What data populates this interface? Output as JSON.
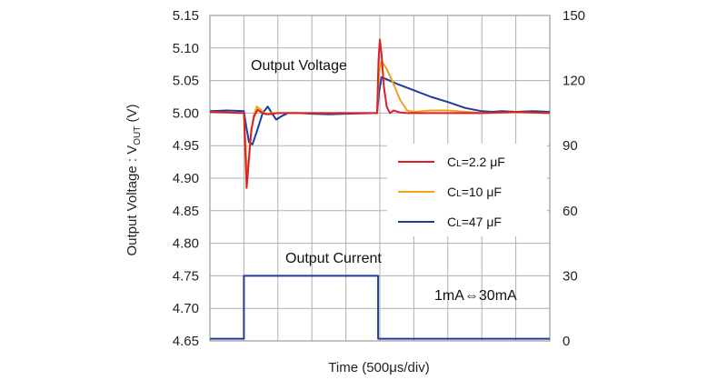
{
  "chart_data": {
    "type": "line",
    "y_left": {
      "label_main": "Output Voltage : V",
      "label_sub": "OUT",
      "label_unit": " (V)",
      "range": [
        4.65,
        5.15
      ],
      "ticks": [
        "4.65",
        "4.70",
        "4.75",
        "4.80",
        "4.85",
        "4.90",
        "4.95",
        "5.00",
        "5.05",
        "5.10",
        "5.15"
      ]
    },
    "y_right": {
      "range": [
        0,
        150
      ],
      "ticks": [
        "0",
        "30",
        "60",
        "90",
        "120",
        "150"
      ]
    },
    "x": {
      "label": "Time (500μs/div)",
      "range": [
        0,
        10
      ],
      "divisions": 10
    },
    "grid": true,
    "annotations": {
      "voltage": "Output Voltage",
      "current": "Output Current",
      "step": "1mA⇔30mA"
    },
    "legend": {
      "placement": "right-middle",
      "entries": [
        {
          "prefix": "C",
          "sub": "L",
          "text": "=2.2 μF",
          "color": "#d9202a"
        },
        {
          "prefix": "C",
          "sub": "L",
          "text": "=10 μF",
          "color": "#f5a01a"
        },
        {
          "prefix": "C",
          "sub": "L",
          "text": "=47 μF",
          "color": "#1f3e9a"
        }
      ]
    },
    "series": [
      {
        "name": "CL=2.2 μF",
        "color": "#d9202a",
        "axis": "left",
        "x": [
          0,
          1.0,
          1.03,
          1.08,
          1.15,
          1.22,
          1.3,
          1.4,
          1.55,
          1.7,
          2.0,
          3.0,
          3.5,
          4.0,
          4.65,
          4.92,
          4.96,
          5.0,
          5.05,
          5.12,
          5.2,
          5.3,
          5.4,
          5.6,
          5.8,
          6.0,
          7.0,
          8.0,
          9.0,
          10.0
        ],
        "y": [
          5.002,
          5.0,
          4.96,
          4.885,
          4.93,
          4.975,
          4.995,
          5.005,
          5.0,
          4.998,
          5.0,
          5.0,
          5.0,
          5.0,
          5.0,
          5.0,
          5.08,
          5.113,
          5.09,
          5.04,
          5.01,
          5.0,
          5.004,
          5.001,
          5.0,
          5.0,
          5.0,
          5.0,
          5.002,
          5.0
        ]
      },
      {
        "name": "CL=10 μF",
        "color": "#f5a01a",
        "axis": "left",
        "x": [
          0,
          1.0,
          1.03,
          1.1,
          1.18,
          1.28,
          1.38,
          1.5,
          1.62,
          1.8,
          2.0,
          3.0,
          4.0,
          4.92,
          4.97,
          5.05,
          5.2,
          5.4,
          5.6,
          5.8,
          6.0,
          6.5,
          7.0,
          8.0,
          9.0,
          10.0
        ],
        "y": [
          5.002,
          5.0,
          4.97,
          4.9,
          4.955,
          4.995,
          5.01,
          5.005,
          4.998,
          5.0,
          5.0,
          5.0,
          5.0,
          5.0,
          5.06,
          5.08,
          5.068,
          5.045,
          5.02,
          5.004,
          5.002,
          5.004,
          5.004,
          5.0,
          5.001,
          5.0
        ]
      },
      {
        "name": "CL=47 μF",
        "color": "#1f3e9a",
        "axis": "left",
        "x": [
          0,
          0.5,
          1.0,
          1.05,
          1.15,
          1.25,
          1.4,
          1.55,
          1.7,
          1.82,
          1.95,
          2.1,
          2.3,
          2.6,
          3.0,
          3.5,
          4.0,
          4.92,
          4.97,
          5.05,
          5.2,
          5.5,
          6.0,
          6.5,
          7.0,
          7.5,
          8.0,
          8.3,
          8.6,
          9.0,
          9.5,
          10.0
        ],
        "y": [
          5.003,
          5.004,
          5.003,
          4.985,
          4.955,
          4.952,
          4.975,
          5.0,
          5.01,
          5.0,
          4.99,
          4.995,
          5.0,
          5.0,
          4.999,
          4.998,
          4.999,
          5.0,
          5.03,
          5.055,
          5.052,
          5.045,
          5.035,
          5.025,
          5.017,
          5.008,
          5.003,
          5.002,
          5.003,
          5.002,
          5.003,
          5.002
        ]
      },
      {
        "name": "Output Current",
        "color": "#1f3e9a",
        "axis": "right",
        "x": [
          0,
          1.0,
          1.0,
          4.95,
          4.95,
          10.0
        ],
        "y": [
          1,
          1,
          30,
          30,
          1,
          1
        ]
      }
    ]
  }
}
